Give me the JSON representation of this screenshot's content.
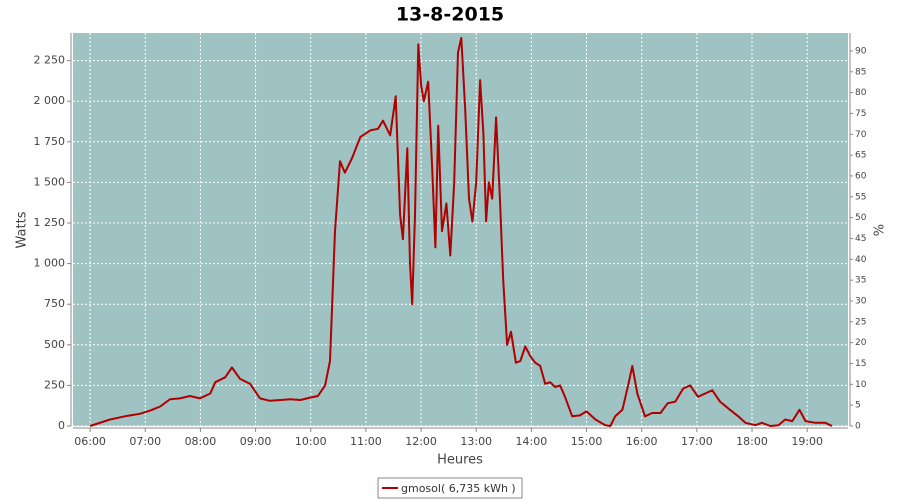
{
  "chart_data": {
    "type": "line",
    "title": "13-8-2015",
    "x_label": "Heures",
    "y_label": "Watts",
    "y2_label": "%",
    "x": [
      6.0,
      6.36,
      6.63,
      6.9,
      7.09,
      7.27,
      7.45,
      7.63,
      7.81,
      7.99,
      8.18,
      8.27,
      8.45,
      8.57,
      8.72,
      8.9,
      9.08,
      9.26,
      9.45,
      9.63,
      9.81,
      9.99,
      10.13,
      10.26,
      10.35,
      10.44,
      10.53,
      10.62,
      10.75,
      10.9,
      11.08,
      11.22,
      11.31,
      11.44,
      11.54,
      11.62,
      11.67,
      11.75,
      11.8,
      11.84,
      11.89,
      11.95,
      12.0,
      12.05,
      12.13,
      12.2,
      12.26,
      12.31,
      12.38,
      12.46,
      12.53,
      12.6,
      12.67,
      12.73,
      12.8,
      12.87,
      12.93,
      13.0,
      13.07,
      13.13,
      13.18,
      13.23,
      13.29,
      13.36,
      13.43,
      13.49,
      13.56,
      13.63,
      13.72,
      13.8,
      13.89,
      13.98,
      14.07,
      14.16,
      14.25,
      14.34,
      14.43,
      14.52,
      14.61,
      14.74,
      14.88,
      15.0,
      15.16,
      15.34,
      15.43,
      15.52,
      15.65,
      15.76,
      15.83,
      15.92,
      16.06,
      16.19,
      16.34,
      16.47,
      16.61,
      16.75,
      16.88,
      17.02,
      17.15,
      17.28,
      17.42,
      17.6,
      17.75,
      17.88,
      18.06,
      18.18,
      18.33,
      18.48,
      18.6,
      18.73,
      18.86,
      18.97,
      19.15,
      19.33,
      19.45
    ],
    "series": [
      {
        "name": "gmosol( 6,735 kWh )",
        "color": "#b00000",
        "values": [
          0,
          40,
          60,
          75,
          95,
          120,
          165,
          170,
          185,
          170,
          200,
          270,
          300,
          360,
          290,
          260,
          170,
          155,
          160,
          165,
          160,
          175,
          185,
          250,
          400,
          1200,
          1630,
          1560,
          1650,
          1780,
          1820,
          1830,
          1880,
          1790,
          2030,
          1300,
          1150,
          1710,
          1000,
          750,
          1300,
          2350,
          2100,
          2000,
          2120,
          1600,
          1100,
          1850,
          1200,
          1370,
          1050,
          1500,
          2300,
          2390,
          1950,
          1400,
          1260,
          1500,
          2130,
          1800,
          1260,
          1500,
          1400,
          1900,
          1400,
          900,
          500,
          580,
          390,
          400,
          490,
          430,
          390,
          370,
          260,
          270,
          240,
          250,
          180,
          60,
          65,
          90,
          40,
          5,
          0,
          60,
          100,
          260,
          370,
          200,
          60,
          80,
          80,
          140,
          150,
          230,
          250,
          180,
          200,
          220,
          150,
          100,
          60,
          20,
          5,
          20,
          0,
          5,
          40,
          30,
          100,
          30,
          20,
          20,
          0
        ]
      }
    ],
    "xlim": [
      5.69,
      19.74
    ],
    "xticks": [
      {
        "value": 6,
        "label": "06:00"
      },
      {
        "value": 7,
        "label": "07:00"
      },
      {
        "value": 8,
        "label": "08:00"
      },
      {
        "value": 9,
        "label": "09:00"
      },
      {
        "value": 10,
        "label": "10:00"
      },
      {
        "value": 11,
        "label": "11:00"
      },
      {
        "value": 12,
        "label": "12:00"
      },
      {
        "value": 13,
        "label": "13:00"
      },
      {
        "value": 14,
        "label": "14:00"
      },
      {
        "value": 15,
        "label": "15:00"
      },
      {
        "value": 16,
        "label": "16:00"
      },
      {
        "value": 17,
        "label": "17:00"
      },
      {
        "value": 18,
        "label": "18:00"
      },
      {
        "value": 19,
        "label": "19:00"
      }
    ],
    "ylim": [
      0,
      2420
    ],
    "yticks": [
      0,
      250,
      500,
      750,
      {
        "value": 1000,
        "label": "1 000"
      },
      {
        "value": 1250,
        "label": "1 250"
      },
      {
        "value": 1500,
        "label": "1 500"
      },
      {
        "value": 1750,
        "label": "1 750"
      },
      {
        "value": 2000,
        "label": "2 000"
      },
      {
        "value": 2250,
        "label": "2 250"
      }
    ],
    "y2lim": [
      0,
      94.3
    ],
    "y2ticks": [
      0,
      5,
      10,
      15,
      20,
      25,
      30,
      35,
      40,
      45,
      50,
      55,
      60,
      65,
      70,
      75,
      80,
      85,
      90
    ],
    "grid": true,
    "plot_background": "#9fc2c2",
    "legend": "bottom"
  }
}
